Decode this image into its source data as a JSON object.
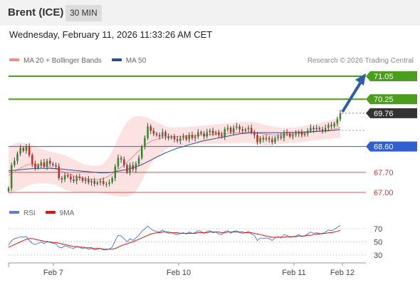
{
  "header": {
    "instrument": "Brent (ICE)",
    "timeframe": "30 MIN"
  },
  "timestamp": "Wednesday, February 11, 2026 11:33:26 AM CET",
  "legend": {
    "ma20_label": "MA 20 + Bollinger Bands",
    "ma20_color": "#f28b82",
    "ma50_label": "MA 50",
    "ma50_color": "#2b4f8c"
  },
  "credit": "Research © 2026 Trading Central",
  "rsi_legend": {
    "rsi_label": "RSI",
    "rsi_color": "#5b7fd6",
    "ma9_label": "9MA",
    "ma9_color": "#dd1111"
  },
  "chart_data": [
    {
      "type": "candlestick",
      "panel": "price",
      "ylim": [
        66.9,
        71.2
      ],
      "x_tick_labels": [
        "Feb 7",
        "Feb 10",
        "Feb 11",
        "Feb 12"
      ],
      "levels": [
        {
          "value": 71.05,
          "label": "71.05",
          "kind": "target-resistance",
          "color": "#4a9e1c"
        },
        {
          "value": 70.25,
          "label": "70.25",
          "kind": "resistance",
          "color": "#4a9e1c"
        },
        {
          "value": 69.76,
          "label": "69.76",
          "kind": "last-price",
          "color": "#333333"
        },
        {
          "value": 68.6,
          "label": "68.60",
          "kind": "pivot",
          "color": "#2f5fd0"
        },
        {
          "value": 67.7,
          "label": "67.70",
          "kind": "support",
          "color": "#e05050"
        },
        {
          "value": 67.0,
          "label": "67.00",
          "kind": "support",
          "color": "#e05050"
        }
      ],
      "closes": [
        67.15,
        67.95,
        68.1,
        68.35,
        68.55,
        68.45,
        68.6,
        68.3,
        68.0,
        67.85,
        67.95,
        68.05,
        67.9,
        68.1,
        68.0,
        67.95,
        67.9,
        67.5,
        67.45,
        67.6,
        67.55,
        67.45,
        67.4,
        67.55,
        67.5,
        67.4,
        67.45,
        67.35,
        67.4,
        67.3,
        67.35,
        67.4,
        67.3,
        67.3,
        67.35,
        67.5,
        67.9,
        68.2,
        68.15,
        67.95,
        67.7,
        67.95,
        67.8,
        68.0,
        68.2,
        68.6,
        68.9,
        69.3,
        69.15,
        69.05,
        69.0,
        68.95,
        69.1,
        68.95,
        68.9,
        68.95,
        68.85,
        68.8,
        68.9,
        68.95,
        68.85,
        69.0,
        68.9,
        68.95,
        69.1,
        69.05,
        68.95,
        69.1,
        69.15,
        69.05,
        69.1,
        69.0,
        68.95,
        69.2,
        69.25,
        69.1,
        69.25,
        69.3,
        69.2,
        69.15,
        69.2,
        69.25,
        69.1,
        69.0,
        68.75,
        68.9,
        68.85,
        68.9,
        68.85,
        68.75,
        68.9,
        68.95,
        68.9,
        69.1,
        69.05,
        68.95,
        69.0,
        69.05,
        69.1,
        69.0,
        69.05,
        69.15,
        69.25,
        69.2,
        69.25,
        69.2,
        69.15,
        69.25,
        69.35,
        69.3,
        69.4,
        69.55,
        69.76
      ],
      "ma20": [
        67.6,
        67.65,
        67.7,
        67.8,
        67.85,
        67.9,
        67.95,
        67.97,
        67.98,
        67.98,
        67.97,
        67.95,
        67.93,
        67.9,
        67.88,
        67.85,
        67.82,
        67.78,
        67.74,
        67.7,
        67.66,
        67.62,
        67.58,
        67.55,
        67.52,
        67.5,
        67.48,
        67.47,
        67.46,
        67.45,
        67.45,
        67.46,
        67.48,
        67.52,
        67.58,
        67.65,
        67.72,
        67.8,
        67.88,
        67.96,
        68.05,
        68.15,
        68.25,
        68.35,
        68.45,
        68.55,
        68.65,
        68.72,
        68.78,
        68.82,
        68.85,
        68.88,
        68.9,
        68.92,
        68.93,
        68.94,
        68.95,
        68.95,
        68.96,
        68.96,
        68.97,
        68.97,
        68.98,
        68.98,
        68.99,
        69.0,
        69.0,
        69.01,
        69.02,
        69.02,
        69.03,
        69.04,
        69.04,
        69.05,
        69.06,
        69.06,
        69.07,
        69.08,
        69.08,
        69.09,
        69.09,
        69.1,
        69.09,
        69.08,
        69.06,
        69.05,
        69.04,
        69.03,
        69.02,
        69.01,
        69.0,
        69.0,
        69.0,
        69.01,
        69.02,
        69.03,
        69.04,
        69.05,
        69.06,
        69.07,
        69.08,
        69.09,
        69.1,
        69.11,
        69.12,
        69.13,
        69.14,
        69.15,
        69.17,
        69.19,
        69.21,
        69.23,
        69.26
      ],
      "bb_upper": [
        68.6,
        68.65,
        68.7,
        68.72,
        68.74,
        68.72,
        68.7,
        68.67,
        68.64,
        68.6,
        68.56,
        68.52,
        68.48,
        68.45,
        68.42,
        68.4,
        68.38,
        68.35,
        68.32,
        68.3,
        68.25,
        68.2,
        68.15,
        68.1,
        68.05,
        68.0,
        67.97,
        67.95,
        67.93,
        67.92,
        67.92,
        67.95,
        68.0,
        68.1,
        68.25,
        68.45,
        68.65,
        68.9,
        69.1,
        69.3,
        69.45,
        69.55,
        69.62,
        69.65,
        69.66,
        69.65,
        69.63,
        69.6,
        69.55,
        69.5,
        69.45,
        69.4,
        69.35,
        69.3,
        69.28,
        69.27,
        69.26,
        69.26,
        69.26,
        69.27,
        69.27,
        69.28,
        69.29,
        69.3,
        69.31,
        69.32,
        69.33,
        69.34,
        69.35,
        69.36,
        69.37,
        69.38,
        69.39,
        69.4,
        69.41,
        69.42,
        69.43,
        69.44,
        69.45,
        69.46,
        69.46,
        69.47,
        69.46,
        69.45,
        69.43,
        69.4,
        69.37,
        69.34,
        69.32,
        69.3,
        69.28,
        69.27,
        69.26,
        69.25,
        69.25,
        69.25,
        69.26,
        69.27,
        69.28,
        69.3,
        69.32,
        69.34,
        69.36,
        69.38,
        69.4,
        69.42,
        69.44,
        69.47,
        69.5,
        69.53,
        69.56,
        69.6,
        69.65
      ],
      "bb_lower": [
        66.9,
        66.95,
        67.0,
        67.05,
        67.1,
        67.15,
        67.2,
        67.25,
        67.28,
        67.3,
        67.32,
        67.33,
        67.33,
        67.32,
        67.3,
        67.28,
        67.25,
        67.2,
        67.15,
        67.1,
        67.07,
        67.04,
        67.01,
        67.0,
        66.99,
        66.99,
        66.99,
        66.99,
        66.99,
        66.99,
        66.99,
        66.98,
        66.97,
        66.95,
        66.92,
        66.9,
        66.88,
        66.86,
        66.85,
        66.85,
        66.86,
        66.9,
        66.95,
        67.05,
        67.2,
        67.4,
        67.6,
        67.8,
        67.98,
        68.12,
        68.22,
        68.3,
        68.4,
        68.5,
        68.55,
        68.58,
        68.6,
        68.62,
        68.63,
        68.64,
        68.65,
        68.66,
        68.67,
        68.67,
        68.68,
        68.68,
        68.68,
        68.69,
        68.69,
        68.69,
        68.7,
        68.7,
        68.7,
        68.71,
        68.71,
        68.71,
        68.72,
        68.72,
        68.72,
        68.72,
        68.73,
        68.73,
        68.72,
        68.7,
        68.68,
        68.66,
        68.65,
        68.65,
        68.65,
        68.66,
        68.67,
        68.68,
        68.69,
        68.7,
        68.71,
        68.72,
        68.73,
        68.74,
        68.75,
        68.76,
        68.77,
        68.78,
        68.8,
        68.81,
        68.82,
        68.83,
        68.84,
        68.85,
        68.86,
        68.87,
        68.88,
        68.89,
        68.9
      ],
      "ma50": [
        67.75,
        67.76,
        67.77,
        67.78,
        67.79,
        67.8,
        67.81,
        67.82,
        67.83,
        67.83,
        67.84,
        67.84,
        67.84,
        67.84,
        67.84,
        67.83,
        67.83,
        67.82,
        67.81,
        67.8,
        67.79,
        67.78,
        67.77,
        67.76,
        67.75,
        67.74,
        67.73,
        67.72,
        67.71,
        67.7,
        67.69,
        67.68,
        67.68,
        67.68,
        67.69,
        67.7,
        67.72,
        67.74,
        67.76,
        67.78,
        67.8,
        67.83,
        67.86,
        67.89,
        67.93,
        67.97,
        68.02,
        68.07,
        68.12,
        68.18,
        68.23,
        68.28,
        68.33,
        68.38,
        68.42,
        68.46,
        68.5,
        68.54,
        68.57,
        68.6,
        68.63,
        68.66,
        68.69,
        68.72,
        68.75,
        68.78,
        68.8,
        68.82,
        68.84,
        68.86,
        68.88,
        68.9,
        68.92,
        68.94,
        68.96,
        68.98,
        69.0,
        69.02,
        69.04,
        69.05,
        69.06,
        69.07,
        69.08,
        69.08,
        69.08,
        69.08,
        69.08,
        69.08,
        69.08,
        69.08,
        69.08,
        69.08,
        69.08,
        69.08,
        69.09,
        69.09,
        69.09,
        69.1,
        69.1,
        69.1,
        69.11,
        69.11,
        69.12,
        69.12,
        69.13,
        69.13,
        69.14,
        69.14,
        69.15,
        69.16,
        69.17,
        69.18,
        69.19
      ]
    },
    {
      "type": "line",
      "panel": "rsi",
      "ylim": [
        20,
        80
      ],
      "y_ticks": [
        70,
        50,
        30
      ],
      "series": [
        {
          "name": "RSI",
          "color": "#5b7fd6",
          "values": [
            45,
            52,
            55,
            56,
            58,
            57,
            58,
            52,
            48,
            46,
            48,
            50,
            47,
            51,
            49,
            48,
            47,
            42,
            41,
            44,
            43,
            41,
            40,
            43,
            42,
            40,
            41,
            39,
            40,
            38,
            39,
            40,
            38,
            38,
            39,
            42,
            52,
            60,
            59,
            55,
            50,
            55,
            52,
            56,
            60,
            66,
            70,
            74,
            70,
            67,
            66,
            65,
            68,
            65,
            63,
            64,
            62,
            61,
            63,
            64,
            62,
            65,
            63,
            64,
            67,
            66,
            63,
            66,
            67,
            64,
            65,
            62,
            61,
            66,
            67,
            63,
            66,
            67,
            64,
            63,
            64,
            66,
            62,
            60,
            52,
            56,
            55,
            56,
            55,
            52,
            56,
            58,
            56,
            61,
            60,
            57,
            58,
            59,
            61,
            58,
            59,
            62,
            65,
            63,
            64,
            63,
            62,
            65,
            68,
            67,
            69,
            72,
            75
          ]
        },
        {
          "name": "9MA",
          "color": "#dd1111",
          "values": [
            42,
            44,
            46,
            48,
            50,
            52,
            54,
            55,
            55,
            54,
            53,
            52,
            51,
            50,
            50,
            49,
            49,
            48,
            47,
            46,
            45,
            44,
            43,
            43,
            42,
            42,
            41,
            41,
            41,
            40,
            40,
            40,
            39,
            39,
            39,
            39,
            40,
            42,
            44,
            46,
            47,
            49,
            50,
            52,
            54,
            56,
            58,
            60,
            62,
            63,
            64,
            64,
            65,
            65,
            65,
            64,
            64,
            64,
            63,
            63,
            63,
            63,
            63,
            63,
            64,
            64,
            64,
            64,
            65,
            65,
            65,
            65,
            64,
            64,
            65,
            65,
            65,
            65,
            65,
            65,
            64,
            64,
            64,
            63,
            62,
            61,
            60,
            59,
            58,
            57,
            57,
            57,
            57,
            57,
            58,
            58,
            58,
            58,
            59,
            59,
            59,
            60,
            60,
            61,
            62,
            62,
            63,
            63,
            64,
            64,
            65,
            66,
            68
          ]
        }
      ]
    }
  ]
}
